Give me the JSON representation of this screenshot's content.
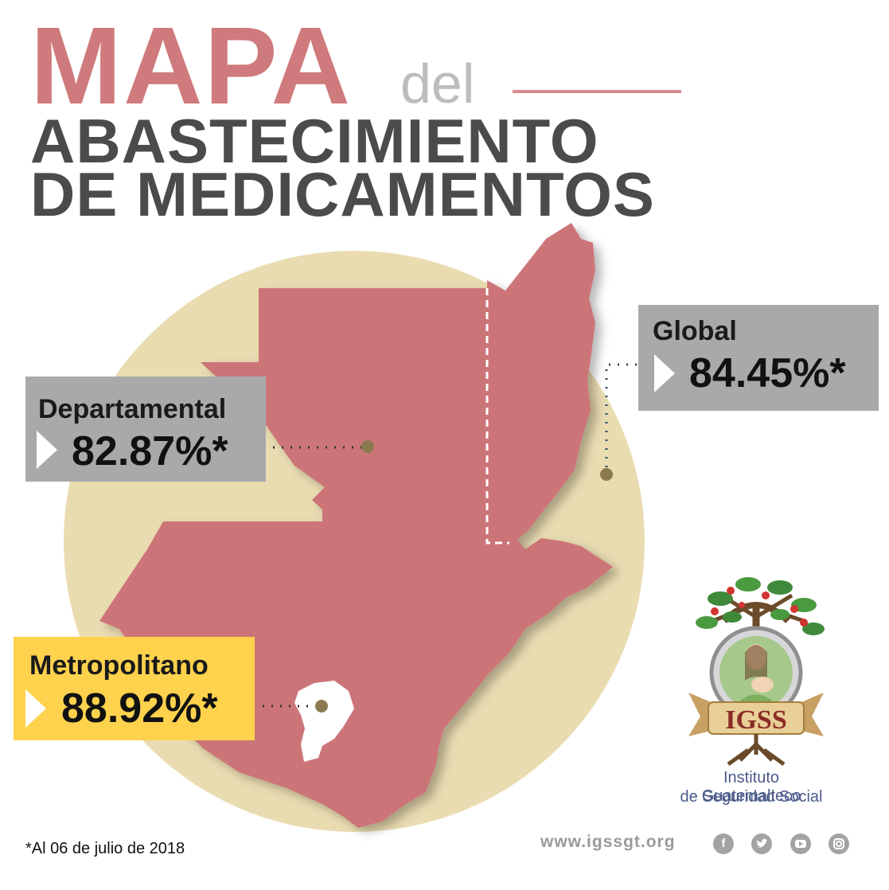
{
  "title": {
    "line1": "MAPA",
    "line1_small": "del",
    "line2": "ABASTECIMIENTO",
    "line3": "DE MEDICAMENTOS"
  },
  "labels": {
    "departamental": {
      "name": "Departamental",
      "value": "82.87%*",
      "percent": 82.87
    },
    "global": {
      "name": "Global",
      "value": "84.45%*",
      "percent": 84.45
    },
    "metropolitano": {
      "name": "Metropolitano",
      "value": "88.92%*",
      "percent": 88.92
    }
  },
  "footnote": "*Al 06 de julio de 2018",
  "website": "www.igssgt.org",
  "social_icons": [
    "facebook-icon",
    "twitter-icon",
    "youtube-icon",
    "instagram-icon"
  ],
  "logo": {
    "acronym": "IGSS",
    "institution_line1": "Instituto Guatemalteco",
    "institution_line2": "de Seguridad Social"
  },
  "colors": {
    "title_pink": "#cf7a7c",
    "title_dark": "#4b4b4d",
    "map_fill": "#cc7579",
    "circle_bg": "#eadcb1",
    "label_box_gray": "#a9a9aa",
    "label_box_yellow": "#fed24d",
    "marker": "#8b7a50"
  }
}
